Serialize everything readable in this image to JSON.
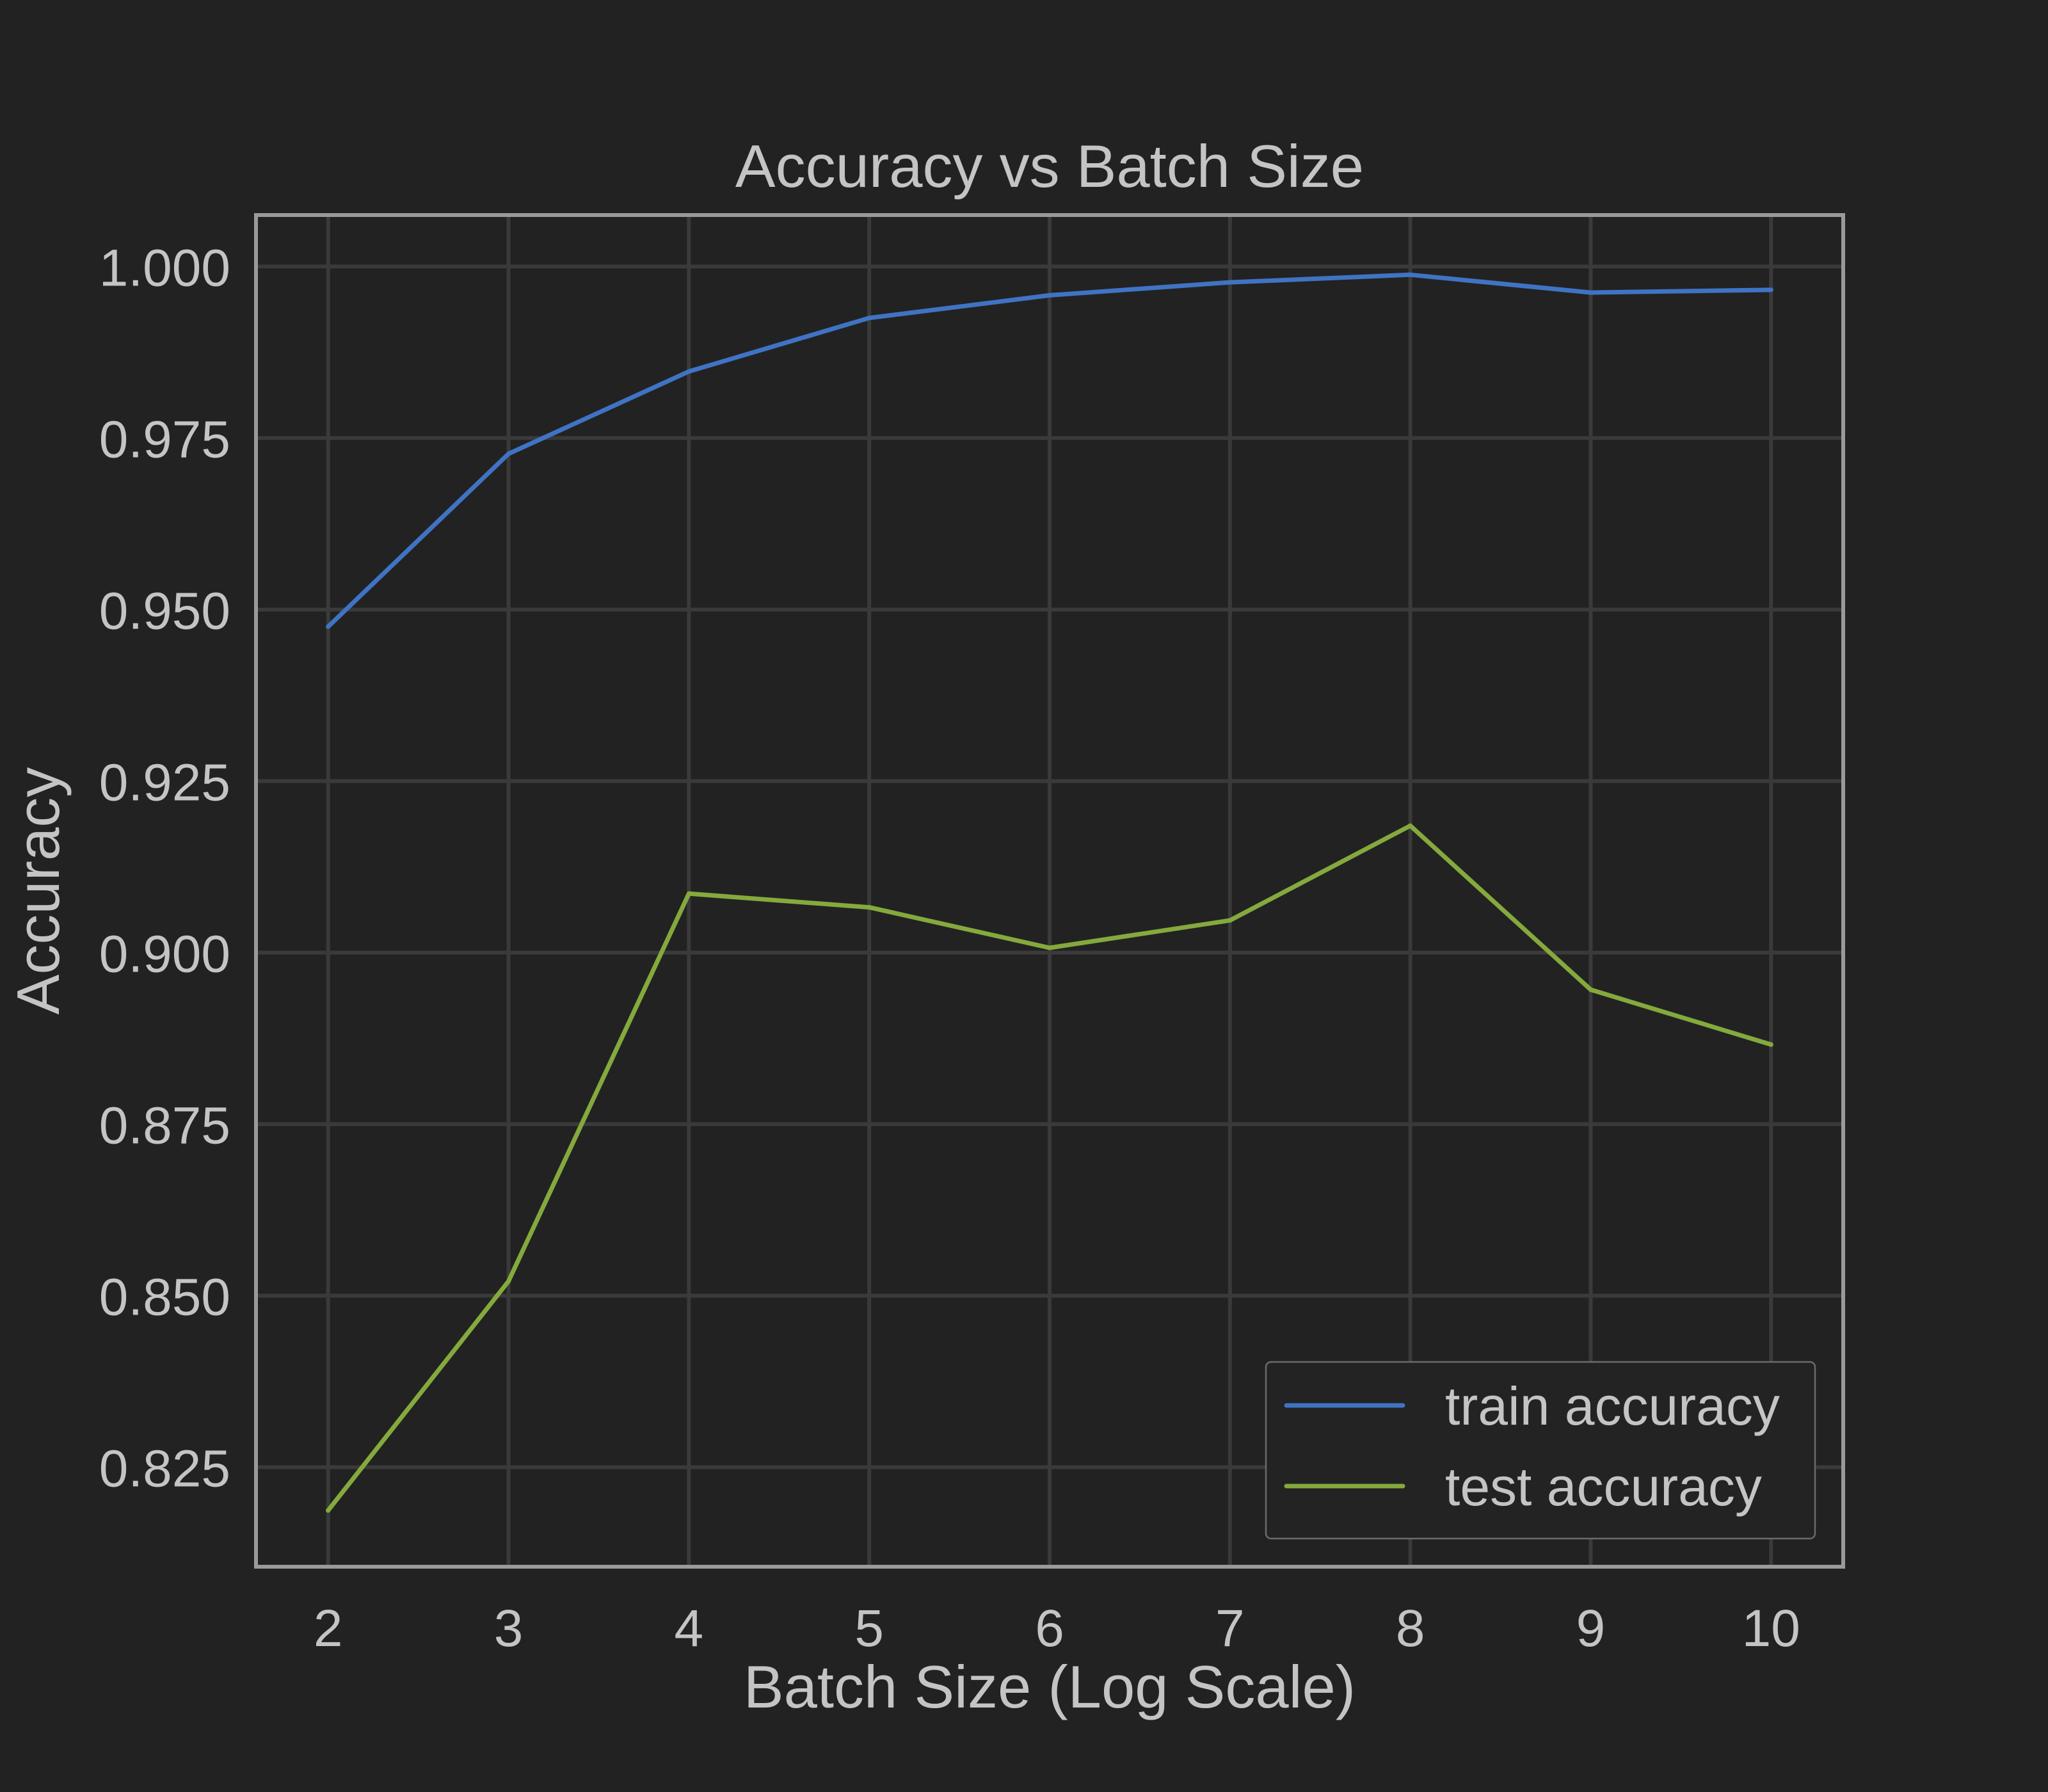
{
  "chart_data": {
    "type": "line",
    "title": "Accuracy vs Batch Size",
    "xlabel": "Batch Size (Log Scale)",
    "ylabel": "Accuracy",
    "x": [
      2,
      3,
      4,
      5,
      6,
      7,
      8,
      9,
      10
    ],
    "xlim": [
      1.6,
      10.4
    ],
    "ylim": [
      0.8105,
      1.0075
    ],
    "x_ticks": [
      2,
      3,
      4,
      5,
      6,
      7,
      8,
      9,
      10
    ],
    "y_ticks": [
      0.825,
      0.85,
      0.875,
      0.9,
      0.925,
      0.95,
      0.975,
      1.0
    ],
    "y_tick_labels": [
      "0.825",
      "0.850",
      "0.875",
      "0.900",
      "0.925",
      "0.950",
      "0.975",
      "1.000"
    ],
    "grid": true,
    "legend_position": "bottom-right",
    "series": [
      {
        "name": "train accuracy",
        "color": "#3f73c4",
        "values": [
          0.9475,
          0.9727,
          0.9847,
          0.9925,
          0.9958,
          0.9977,
          0.9988,
          0.9962,
          0.9966
        ]
      },
      {
        "name": "test accuracy",
        "color": "#84a93d",
        "values": [
          0.8187,
          0.8521,
          0.9086,
          0.9066,
          0.9007,
          0.9047,
          0.9185,
          0.8946,
          0.8866
        ]
      }
    ]
  },
  "colors": {
    "background": "#222222",
    "text": "#c4c4c4",
    "grid": "#3a3a3a",
    "frame": "#9a9a9a"
  }
}
